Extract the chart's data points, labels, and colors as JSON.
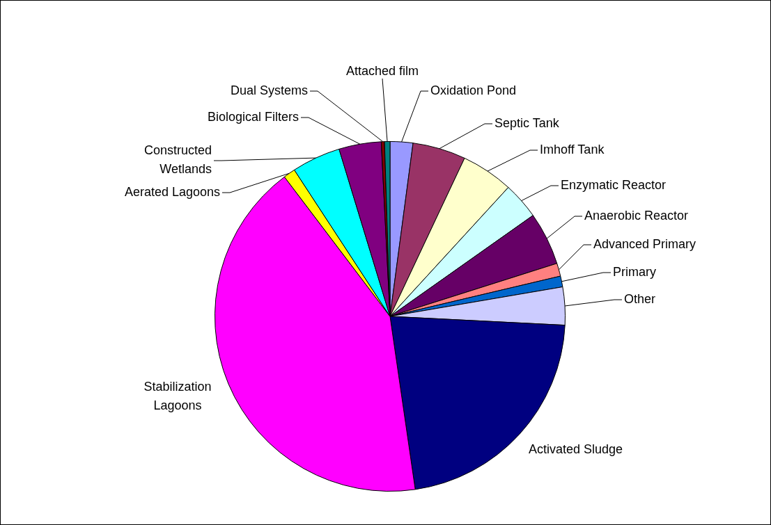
{
  "chart_data": {
    "type": "pie",
    "categories": [
      "Oxidation Pond",
      "Septic Tank",
      "Imhoff Tank",
      "Enzymatic Reactor",
      "Anaerobic Reactor",
      "Advanced Primary",
      "Primary",
      "Other",
      "Activated Sludge",
      "Stabilization Lagoons",
      "Aerated Lagoons",
      "Constructed Wetlands",
      "Biological Filters",
      "Dual Systems",
      "Attached film"
    ],
    "values": [
      2.1,
      4.9,
      4.8,
      3.4,
      4.9,
      1.2,
      1.0,
      3.5,
      21.9,
      42.0,
      1.1,
      4.5,
      3.9,
      0.3,
      0.5
    ],
    "colors": [
      "#9999ff",
      "#993366",
      "#ffffcc",
      "#ccffff",
      "#660066",
      "#ff8080",
      "#0066cc",
      "#ccccff",
      "#000080",
      "#ff00ff",
      "#ffff00",
      "#00ffff",
      "#800080",
      "#800000",
      "#008080"
    ],
    "legend": false
  }
}
